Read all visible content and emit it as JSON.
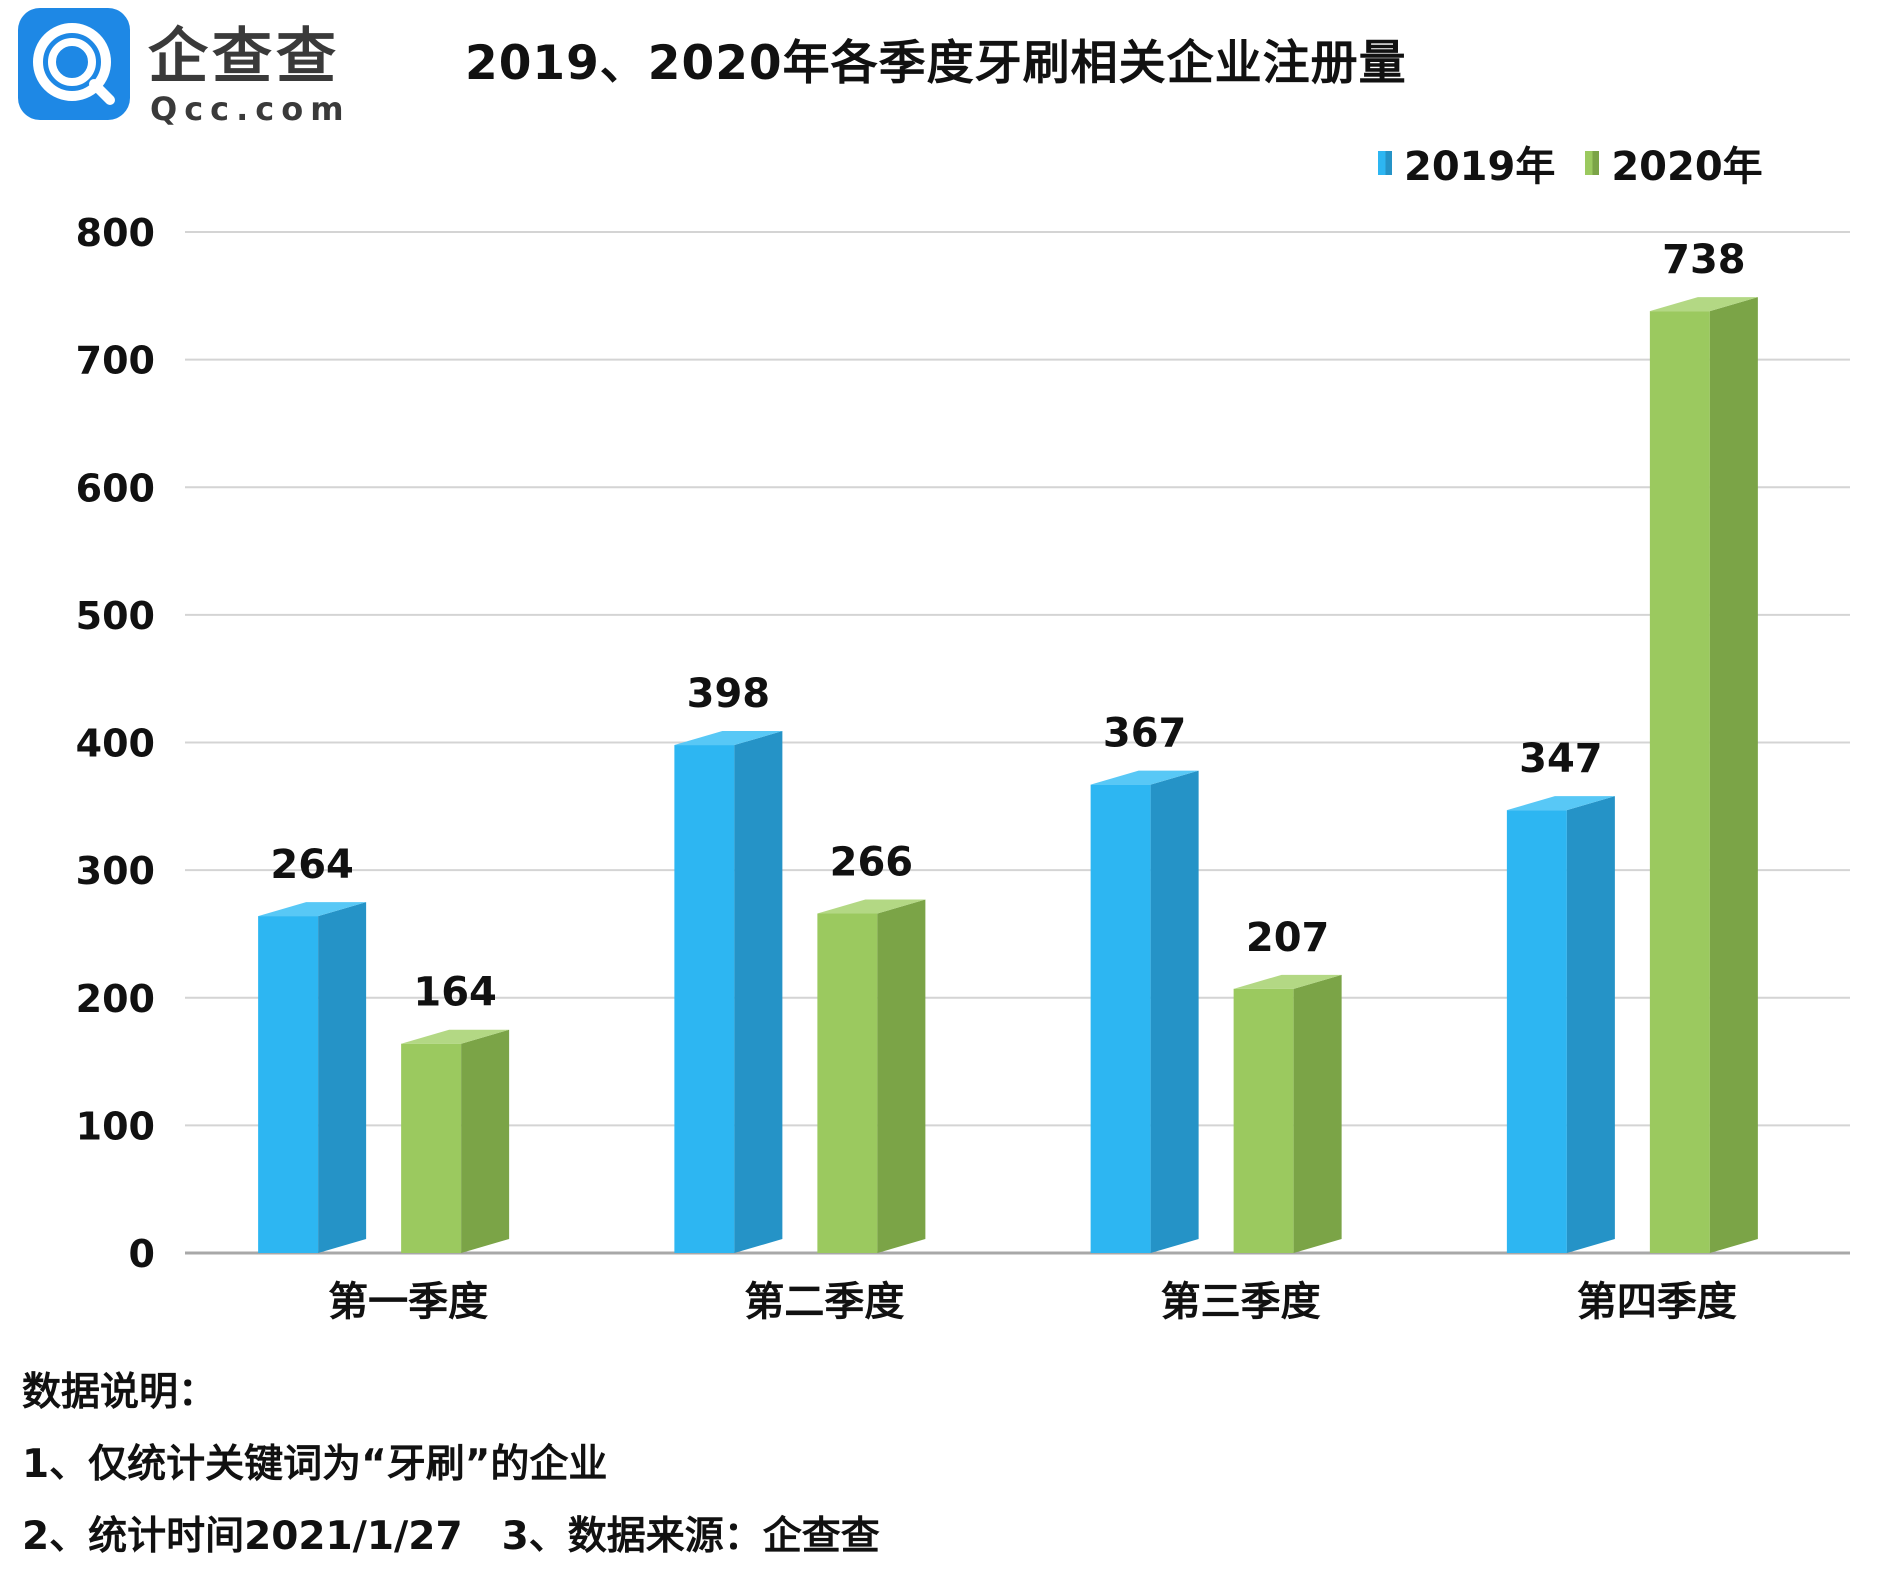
{
  "logo": {
    "name": "企查查",
    "domain": "Qcc.com",
    "icon": "qcc-logo-icon",
    "color": "#1e88e5"
  },
  "chart_data": {
    "type": "bar",
    "title": "2019、2020年各季度牙刷相关企业注册量",
    "categories": [
      "第一季度",
      "第二季度",
      "第三季度",
      "第四季度"
    ],
    "series": [
      {
        "name": "2019年",
        "values": [
          264,
          398,
          367,
          347
        ],
        "color": "#2db6f2",
        "side_color": "#2593c7",
        "top_color": "#58c8f6"
      },
      {
        "name": "2020年",
        "values": [
          164,
          266,
          207,
          738
        ],
        "color": "#9bc95f",
        "side_color": "#7ba447",
        "top_color": "#b3d884"
      }
    ],
    "ylim": [
      0,
      800
    ],
    "yticks": [
      0,
      100,
      200,
      300,
      400,
      500,
      600,
      700,
      800
    ],
    "grid": true,
    "legend_position": "top-right",
    "data_labels": true,
    "xlabel": "",
    "ylabel": ""
  },
  "notes": {
    "heading": "数据说明：",
    "line1": "1、仅统计关键词为“牙刷”的企业",
    "line2": "2、统计时间2021/1/27　3、数据来源：企查查"
  }
}
